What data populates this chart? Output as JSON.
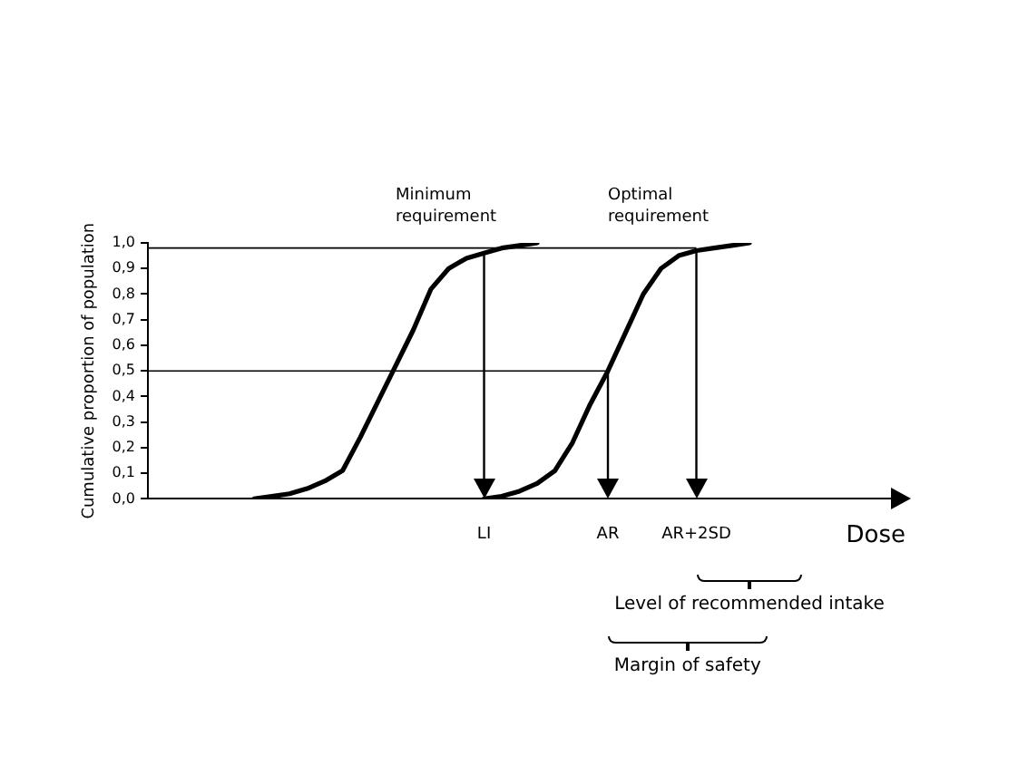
{
  "chart_data": {
    "type": "line",
    "ylabel": "Cumulative proportion of population",
    "xlabel": "Dose",
    "categories": [
      null,
      null,
      null,
      null,
      null,
      null,
      null,
      null,
      null,
      null,
      null,
      null,
      null,
      null,
      null,
      null,
      null,
      null,
      null,
      "LI",
      null,
      null,
      null,
      null,
      null,
      null,
      "AR",
      null,
      null,
      null,
      null,
      "AR+2SD",
      null,
      null,
      null,
      null,
      null,
      null,
      null,
      null,
      null,
      null,
      null
    ],
    "series": [
      {
        "name": "Minimum requirement",
        "color": "#000000",
        "values": [
          null,
          null,
          null,
          null,
          null,
          null,
          0.0,
          0.01,
          0.02,
          0.04,
          0.07,
          0.11,
          0.24,
          0.38,
          0.52,
          0.66,
          0.82,
          0.9,
          0.94,
          0.96,
          0.98,
          0.99,
          1.0,
          null,
          null,
          null,
          null,
          null,
          null,
          null,
          null,
          null,
          null,
          null,
          null,
          null,
          null,
          null,
          null,
          null,
          null,
          null,
          null
        ]
      },
      {
        "name": "Optimal requirement",
        "color": "#000000",
        "values": [
          null,
          null,
          null,
          null,
          null,
          null,
          null,
          null,
          null,
          null,
          null,
          null,
          null,
          null,
          null,
          null,
          null,
          null,
          null,
          0.0,
          0.01,
          0.03,
          0.06,
          0.11,
          0.22,
          0.37,
          0.5,
          0.65,
          0.8,
          0.9,
          0.95,
          0.97,
          0.98,
          0.99,
          1.0,
          null,
          null,
          null,
          null,
          null,
          null,
          null,
          null
        ]
      }
    ],
    "ylim": [
      0,
      1
    ],
    "yticks": [
      {
        "value": 0,
        "label": "0,0"
      },
      {
        "value": 0.1,
        "label": "0,1"
      },
      {
        "value": 0.2,
        "label": "0,2"
      },
      {
        "value": 0.3,
        "label": "0,3"
      },
      {
        "value": 0.4,
        "label": "0,4"
      },
      {
        "value": 0.5,
        "label": "0,5"
      },
      {
        "value": 0.6,
        "label": "0,6"
      },
      {
        "value": 0.7,
        "label": "0,7"
      },
      {
        "value": 0.8,
        "label": "0,8"
      },
      {
        "value": 0.9,
        "label": "0,9"
      },
      {
        "value": 1,
        "label": "1,0"
      }
    ],
    "ref_lines": [
      {
        "axis": "y",
        "value": 0.5
      },
      {
        "axis": "y",
        "value": 0.98
      },
      {
        "axis": "x",
        "value": "LI"
      },
      {
        "axis": "x",
        "value": "AR"
      },
      {
        "axis": "x",
        "value": "AR+2SD"
      }
    ],
    "annotations": [
      "Level of recommended intake",
      "Margin of safety"
    ],
    "grid": false,
    "legend": false,
    "marker": "none",
    "line_style": "solid"
  }
}
